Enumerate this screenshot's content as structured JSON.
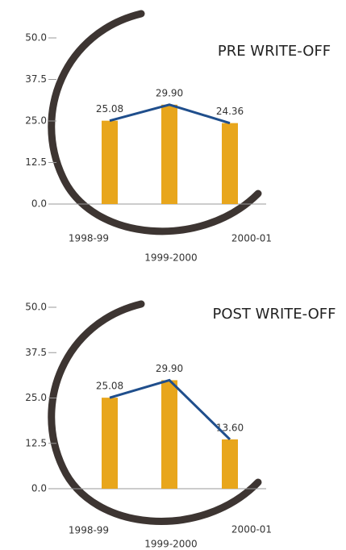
{
  "chart_data": [
    {
      "type": "bar",
      "title": "PRE WRITE-OFF",
      "categories": [
        "1998-99",
        "1999-2000",
        "2000-01"
      ],
      "values": [
        25.08,
        29.9,
        24.36
      ],
      "value_labels": [
        "25.08",
        "29.90",
        "24.36"
      ],
      "color": "#e8a61c",
      "line_color": "#1f4e8c",
      "ylim": [
        0,
        50
      ],
      "yticks": [
        {
          "value": 0,
          "label": "0.0"
        },
        {
          "value": 12.5,
          "label": "12.5"
        },
        {
          "value": 25,
          "label": "25.0"
        },
        {
          "value": 37.5,
          "label": "37.5"
        },
        {
          "value": 50,
          "label": "50.0"
        }
      ]
    },
    {
      "type": "bar",
      "title": "POST WRITE-OFF",
      "categories": [
        "1998-99",
        "1999-2000",
        "2000-01"
      ],
      "values": [
        25.08,
        29.9,
        13.6
      ],
      "value_labels": [
        "25.08",
        "29.90",
        "13.60"
      ],
      "color": "#e8a61c",
      "line_color": "#1f4e8c",
      "ylim": [
        0,
        50
      ],
      "yticks": [
        {
          "value": 0,
          "label": "0.0"
        },
        {
          "value": 12.5,
          "label": "12.5"
        },
        {
          "value": 25,
          "label": "25.0"
        },
        {
          "value": 37.5,
          "label": "37.5"
        },
        {
          "value": 50,
          "label": "50.0"
        }
      ]
    }
  ]
}
